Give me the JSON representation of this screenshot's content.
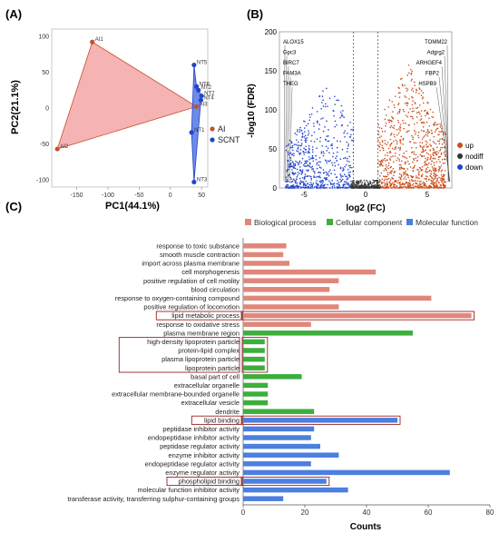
{
  "panels": {
    "a": {
      "label": "(A)",
      "chart_data": {
        "type": "scatter",
        "xlabel": "PC1(44.1%)",
        "ylabel": "PC2(21.1%)",
        "xlim": [
          -190,
          60
        ],
        "ylim": [
          -110,
          110
        ],
        "xticks": [
          -150,
          -100,
          -50,
          0,
          50
        ],
        "yticks": [
          -100,
          -50,
          0,
          50,
          100
        ],
        "series": [
          {
            "name": "AI",
            "color": "#c8502e",
            "points": [
              {
                "label": "AI1",
                "x": -125,
                "y": 92
              },
              {
                "label": "AI2",
                "x": -181,
                "y": -57
              },
              {
                "label": "AI3",
                "x": 42,
                "y": 2
              }
            ]
          },
          {
            "name": "SCNT",
            "color": "#2244cc",
            "points": [
              {
                "label": "NT5",
                "x": 38,
                "y": 60
              },
              {
                "label": "NT2",
                "x": 45,
                "y": 25
              },
              {
                "label": "NT2",
                "x": 50,
                "y": 17
              },
              {
                "label": "NT4",
                "x": 49,
                "y": 11
              },
              {
                "label": "NT6",
                "x": 42,
                "y": 30
              },
              {
                "label": "NT1",
                "x": 34,
                "y": -34
              },
              {
                "label": "NT3",
                "x": 38,
                "y": -103
              }
            ]
          }
        ],
        "legend_position": "right"
      }
    },
    "b": {
      "label": "(B)",
      "chart_data": {
        "type": "scatter",
        "xlabel": "log2 (FC)",
        "ylabel": "-log10 (FDR)",
        "xlim": [
          -7,
          7
        ],
        "ylim": [
          0,
          200
        ],
        "xticks": [
          -5,
          0,
          5
        ],
        "yticks": [
          0,
          50,
          100,
          150,
          200
        ],
        "thresholds_x": [
          -1,
          1
        ],
        "legend": [
          {
            "name": "up",
            "color": "#cc4e1a"
          },
          {
            "name": "nodiff",
            "color": "#333333"
          },
          {
            "name": "down",
            "color": "#2244cc"
          }
        ],
        "gene_labels_left": [
          "ALOX15",
          "Gpc3",
          "BIRC7",
          "FAM3A",
          "THEG"
        ],
        "gene_labels_right": [
          "TOMM22",
          "Adgrg2",
          "ARHGEF4",
          "FBP2",
          "HSPB9"
        ]
      }
    },
    "c": {
      "label": "(C)",
      "chart_data": {
        "type": "bar",
        "orientation": "horizontal",
        "xlabel": "Counts",
        "xlim": [
          0,
          80
        ],
        "xticks": [
          0,
          20,
          40,
          60,
          80
        ],
        "legend": [
          {
            "name": "Biological process",
            "color": "#e0877a"
          },
          {
            "name": "Cellular component",
            "color": "#3cae3c"
          },
          {
            "name": "Molecular function",
            "color": "#4b7fe0"
          }
        ],
        "categories": [
          {
            "term": "response to toxic substance",
            "count": 14,
            "group": "Biological process"
          },
          {
            "term": "smooth muscle contraction",
            "count": 13,
            "group": "Biological process"
          },
          {
            "term": "import across plasma membrane",
            "count": 15,
            "group": "Biological process"
          },
          {
            "term": "cell morphogenesis",
            "count": 43,
            "group": "Biological process"
          },
          {
            "term": "positive regulation of cell motility",
            "count": 31,
            "group": "Biological process"
          },
          {
            "term": "blood circulation",
            "count": 28,
            "group": "Biological process"
          },
          {
            "term": "response to oxygen-containing compound",
            "count": 61,
            "group": "Biological process"
          },
          {
            "term": "positive regulation of locomotion",
            "count": 31,
            "group": "Biological process"
          },
          {
            "term": "lipid metabolic process",
            "count": 74,
            "group": "Biological process",
            "highlight": true
          },
          {
            "term": "response to oxidative stress",
            "count": 22,
            "group": "Biological process"
          },
          {
            "term": "plasma membrane region",
            "count": 55,
            "group": "Cellular component"
          },
          {
            "term": "high-density lipoprotein particle",
            "count": 7,
            "group": "Cellular component",
            "highlight_group": 1
          },
          {
            "term": "protein-lipid complex",
            "count": 7,
            "group": "Cellular component",
            "highlight_group": 1
          },
          {
            "term": "plasma lipoprotein particle",
            "count": 7,
            "group": "Cellular component",
            "highlight_group": 1
          },
          {
            "term": "lipoprotein particle",
            "count": 7,
            "group": "Cellular component",
            "highlight_group": 1
          },
          {
            "term": "basal part of cell",
            "count": 19,
            "group": "Cellular component"
          },
          {
            "term": "extracellular organelle",
            "count": 8,
            "group": "Cellular component"
          },
          {
            "term": "extracellular membrane-bounded organelle",
            "count": 8,
            "group": "Cellular component"
          },
          {
            "term": "extracellular vesicle",
            "count": 8,
            "group": "Cellular component"
          },
          {
            "term": "dendrite",
            "count": 23,
            "group": "Cellular component"
          },
          {
            "term": "lipid binding",
            "count": 50,
            "group": "Molecular function",
            "highlight": true
          },
          {
            "term": "peptidase inhibitor activity",
            "count": 23,
            "group": "Molecular function"
          },
          {
            "term": "endopeptidase inhibitor activity",
            "count": 22,
            "group": "Molecular function"
          },
          {
            "term": "peptidase regulator activity",
            "count": 25,
            "group": "Molecular function"
          },
          {
            "term": "enzyme inhibitor activity",
            "count": 31,
            "group": "Molecular function"
          },
          {
            "term": "endopeptidase regulator activity",
            "count": 22,
            "group": "Molecular function"
          },
          {
            "term": "enzyme regulator activity",
            "count": 67,
            "group": "Molecular function"
          },
          {
            "term": "phospholipid binding",
            "count": 27,
            "group": "Molecular function",
            "highlight": true
          },
          {
            "term": "molecular function inhibitor activity",
            "count": 34,
            "group": "Molecular function"
          },
          {
            "term": "transferase activity, transferring sulphur-containing groups",
            "count": 13,
            "group": "Molecular function"
          }
        ]
      }
    }
  }
}
